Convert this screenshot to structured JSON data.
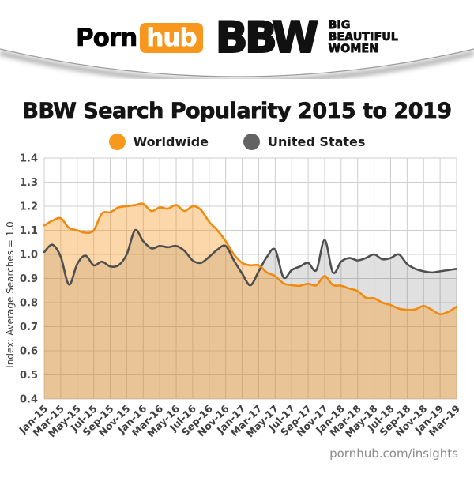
{
  "brand": {
    "orange": "#f7971e"
  },
  "header": {
    "logo": {
      "porn": "Porn",
      "hub": "hub"
    },
    "bbw": {
      "word": "BBW",
      "big": "BIG",
      "beautiful": "BEAUTIFUL",
      "women": "WOMEN"
    }
  },
  "title": "BBW Search Popularity 2015 to 2019",
  "legend": [
    {
      "label": "Worldwide",
      "color": "#f8981d"
    },
    {
      "label": "United States",
      "color": "#636363"
    }
  ],
  "footer": "pornhub.com/insights",
  "chart_data": {
    "type": "area",
    "title": "BBW Search Popularity 2015 to 2019",
    "ylabel": "Index: Average Searches = 1.0",
    "ylim": [
      0.4,
      1.4
    ],
    "ytick_step": 0.1,
    "grid": true,
    "legend_position": "top",
    "x_start": "Jan-15",
    "x_end": "Mar-19",
    "months_per_tick": 2,
    "x_tick_labels": [
      "Jan-15",
      "Mar-15",
      "May-15",
      "Jul-15",
      "Sep-15",
      "Nov-15",
      "Jan-16",
      "Mar-16",
      "May-16",
      "Jul-16",
      "Sep-16",
      "Nov-16",
      "Jan-17",
      "Mar-17",
      "May-17",
      "Jul-17",
      "Sep-17",
      "Nov-17",
      "Jan-18",
      "Mar-18",
      "May-18",
      "Jul-18",
      "Sep-18",
      "Nov-18",
      "Jan-19",
      "Mar-19"
    ],
    "series": [
      {
        "name": "United States",
        "color": "#4f4f4f",
        "fill": "rgba(99,99,99,0.2)",
        "values": [
          1.01,
          1.04,
          0.99,
          0.875,
          0.96,
          0.995,
          0.955,
          0.97,
          0.95,
          0.955,
          1.0,
          1.1,
          1.055,
          1.025,
          1.035,
          1.03,
          1.035,
          1.015,
          0.975,
          0.965,
          0.99,
          1.02,
          1.035,
          0.975,
          0.92,
          0.872,
          0.93,
          0.99,
          1.02,
          0.905,
          0.935,
          0.95,
          0.965,
          0.935,
          1.06,
          0.925,
          0.97,
          0.985,
          0.975,
          0.985,
          1.0,
          0.98,
          0.985,
          1.0,
          0.96,
          0.94,
          0.93,
          0.925,
          0.93,
          0.935,
          0.94
        ]
      },
      {
        "name": "Worldwide",
        "color": "#ee8b10",
        "fill": "rgba(246,150,30,0.38)",
        "values": [
          1.12,
          1.14,
          1.15,
          1.11,
          1.1,
          1.09,
          1.1,
          1.17,
          1.175,
          1.195,
          1.2,
          1.205,
          1.21,
          1.18,
          1.195,
          1.19,
          1.205,
          1.18,
          1.2,
          1.185,
          1.135,
          1.1,
          1.055,
          1.0,
          0.965,
          0.955,
          0.955,
          0.925,
          0.91,
          0.88,
          0.872,
          0.87,
          0.878,
          0.872,
          0.91,
          0.873,
          0.87,
          0.858,
          0.848,
          0.82,
          0.818,
          0.8,
          0.79,
          0.775,
          0.77,
          0.772,
          0.786,
          0.77,
          0.752,
          0.762,
          0.783
        ]
      }
    ]
  }
}
